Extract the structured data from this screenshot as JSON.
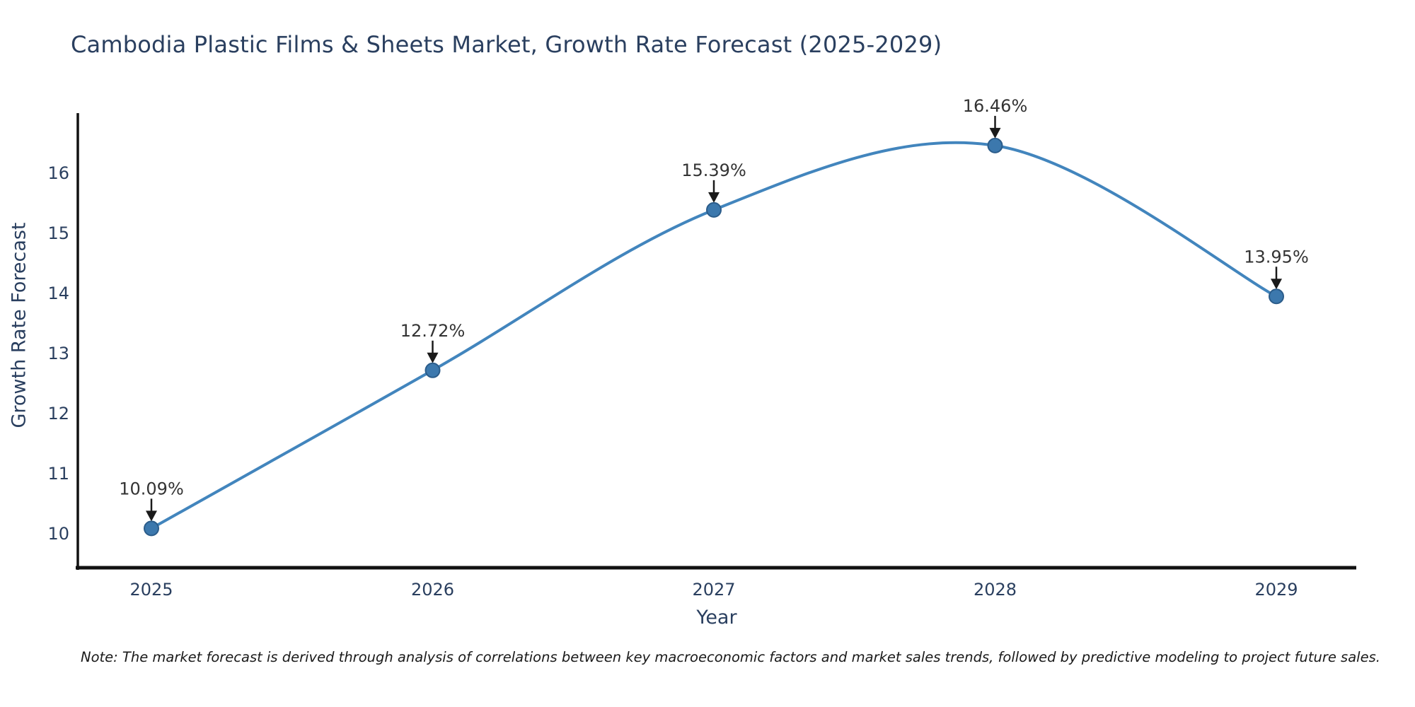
{
  "figure": {
    "title": "Cambodia Plastic Films & Sheets Market, Growth Rate Forecast (2025-2029)",
    "note": "Note: The market forecast is derived through analysis of correlations between key macroeconomic factors and market sales trends, followed by predictive modeling to project future sales."
  },
  "chart_data": {
    "type": "line",
    "curve": "spline",
    "title": "Cambodia Plastic Films & Sheets Market, Growth Rate Forecast (2025-2029)",
    "xlabel": "Year",
    "ylabel": "Growth Rate Forecast",
    "x": [
      2025,
      2026,
      2027,
      2028,
      2029
    ],
    "series": [
      {
        "name": "Growth Rate Forecast",
        "values": [
          10.09,
          12.72,
          15.39,
          16.46,
          13.95
        ]
      }
    ],
    "point_labels": [
      "10.09%",
      "12.72%",
      "15.39%",
      "16.46%",
      "13.95%"
    ],
    "yticks": [
      10,
      11,
      12,
      13,
      14,
      15,
      16
    ],
    "ylim": [
      9.45,
      17.0
    ],
    "xlim": [
      2024.74,
      2029.28
    ],
    "grid": false,
    "legend_position": "none",
    "colors": {
      "line": "#4285bd",
      "marker_fill": "#3c78ad",
      "marker_edge": "#2b5c8a",
      "axis": "#111111",
      "annotation_arrow": "#1a1a1a",
      "annotation_text": "#333333",
      "tick_text": "#2a3f5f",
      "title_text": "#2a3f5f"
    }
  }
}
